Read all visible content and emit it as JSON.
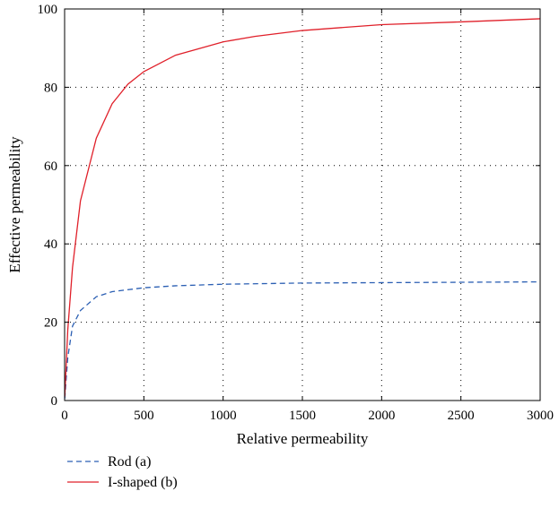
{
  "chart_data": {
    "type": "line",
    "title": "",
    "xlabel": "Relative permeability",
    "ylabel": "Effective permeability",
    "xlim": [
      0,
      3000
    ],
    "ylim": [
      0,
      100
    ],
    "xticks": [
      0,
      500,
      1000,
      1500,
      2000,
      2500,
      3000
    ],
    "yticks": [
      0,
      20,
      40,
      60,
      80,
      100
    ],
    "xtick_labels": [
      "0",
      "500",
      "1000",
      "1500",
      "2000",
      "2500",
      "3000"
    ],
    "ytick_labels": [
      "0",
      "20",
      "40",
      "60",
      "80",
      "100"
    ],
    "grid": true,
    "legend_position": "bottom-left outside",
    "series": [
      {
        "name": "Rod (a)",
        "color": "#2b5fb3",
        "dash": "dashed",
        "x": [
          1,
          20,
          50,
          100,
          200,
          300,
          500,
          700,
          1000,
          1500,
          2000,
          2500,
          3000
        ],
        "y": [
          0.5,
          11,
          19,
          23,
          26.5,
          27.8,
          28.8,
          29.3,
          29.7,
          30,
          30.1,
          30.2,
          30.3
        ]
      },
      {
        "name": "I-shaped (b)",
        "color": "#e0202a",
        "dash": "solid",
        "x": [
          1,
          20,
          50,
          100,
          200,
          300,
          400,
          500,
          700,
          1000,
          1200,
          1500,
          2000,
          2500,
          3000
        ],
        "y": [
          1,
          18,
          34,
          51,
          67,
          75.8,
          80.8,
          84,
          88.2,
          91.6,
          93,
          94.5,
          96,
          96.7,
          97.5
        ]
      }
    ]
  }
}
